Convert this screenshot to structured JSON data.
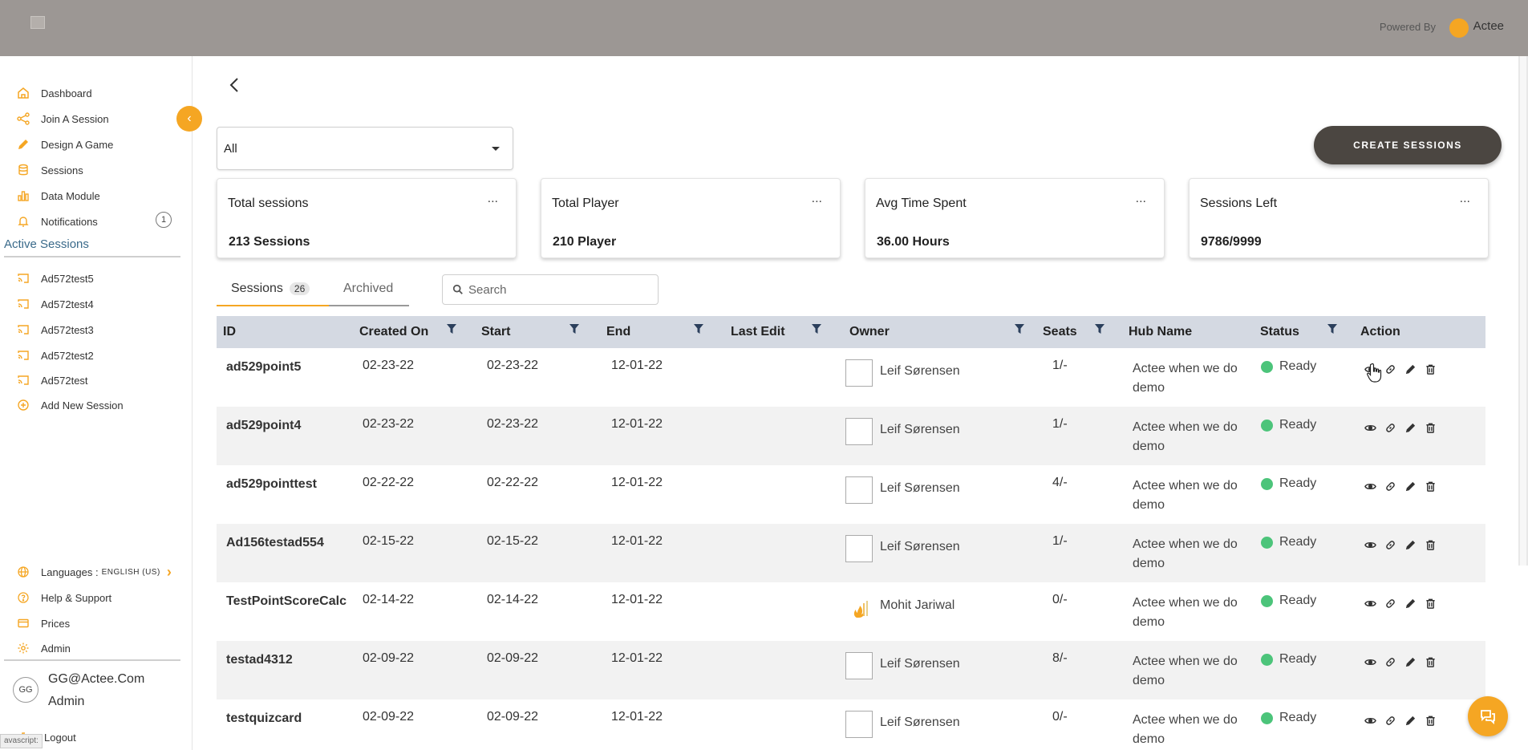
{
  "header": {
    "powered_by": "Powered By",
    "brand": "Actee"
  },
  "sidebar": {
    "nav": [
      {
        "label": "Dashboard",
        "icon": "home-icon"
      },
      {
        "label": "Join A Session",
        "icon": "share-icon"
      },
      {
        "label": "Design A Game",
        "icon": "pencil-icon"
      },
      {
        "label": "Sessions",
        "icon": "database-icon"
      },
      {
        "label": "Data Module",
        "icon": "bar-chart-icon"
      },
      {
        "label": "Notifications",
        "icon": "bell-icon",
        "badge": "1"
      }
    ],
    "active_sessions_title": "Active Sessions",
    "active_sessions": [
      {
        "label": "Ad572test5"
      },
      {
        "label": "Ad572test4"
      },
      {
        "label": "Ad572test3"
      },
      {
        "label": "Ad572test2"
      },
      {
        "label": "Ad572test"
      }
    ],
    "add_new_session": "Add New Session",
    "languages_label": "Languages :",
    "language_value": "ENGLISH (US)",
    "help": "Help & Support",
    "prices": "Prices",
    "admin": "Admin",
    "user": {
      "initials": "GG",
      "email": "GG@Actee.Com",
      "role": "Admin"
    },
    "logout": "Logout",
    "status_url": "avascript:"
  },
  "filter": {
    "selected": "All"
  },
  "create_button": "CREATE SESSIONS",
  "stats": [
    {
      "label": "Total sessions",
      "value": "213 Sessions"
    },
    {
      "label": "Total Player",
      "value": "210 Player"
    },
    {
      "label": "Avg Time Spent",
      "value": "36.00 Hours"
    },
    {
      "label": "Sessions Left",
      "value": "9786/9999"
    }
  ],
  "stat_more": "...",
  "tabs": {
    "sessions": "Sessions",
    "sessions_count": "26",
    "archived": "Archived"
  },
  "search": {
    "placeholder": "Search"
  },
  "table": {
    "columns": [
      "ID",
      "Created On",
      "Start",
      "End",
      "Last Edit",
      "Owner",
      "Seats",
      "Hub Name",
      "Status",
      "Action"
    ],
    "rows": [
      {
        "id": "ad529point5",
        "created": "02-23-22",
        "start": "02-23-22",
        "end": "12-01-22",
        "owner": "Leif Sørensen",
        "seats": "1/-",
        "hub": "Actee when we do demo",
        "status": "Ready"
      },
      {
        "id": "ad529point4",
        "created": "02-23-22",
        "start": "02-23-22",
        "end": "12-01-22",
        "owner": "Leif Sørensen",
        "seats": "1/-",
        "hub": "Actee when we do demo",
        "status": "Ready"
      },
      {
        "id": "ad529pointtest",
        "created": "02-22-22",
        "start": "02-22-22",
        "end": "12-01-22",
        "owner": "Leif Sørensen",
        "seats": "4/-",
        "hub": "Actee when we do demo",
        "status": "Ready"
      },
      {
        "id": "Ad156testad554",
        "created": "02-15-22",
        "start": "02-15-22",
        "end": "12-01-22",
        "owner": "Leif Sørensen",
        "seats": "1/-",
        "hub": "Actee when we do demo",
        "status": "Ready"
      },
      {
        "id": "TestPointScoreCalc",
        "created": "02-14-22",
        "start": "02-14-22",
        "end": "12-01-22",
        "owner": "Mohit Jariwal",
        "seats": "0/-",
        "hub": "Actee when we do demo",
        "status": "Ready"
      },
      {
        "id": "testad4312",
        "created": "02-09-22",
        "start": "02-09-22",
        "end": "12-01-22",
        "owner": "Leif Sørensen",
        "seats": "8/-",
        "hub": "Actee when we do demo",
        "status": "Ready"
      },
      {
        "id": "testquizcard",
        "created": "02-09-22",
        "start": "02-09-22",
        "end": "12-01-22",
        "owner": "Leif Sørensen",
        "seats": "0/-",
        "hub": "Actee when we do demo",
        "status": "Ready"
      }
    ]
  },
  "colors": {
    "accent": "#f5a623",
    "header": "#9c9794",
    "button": "#4b4641",
    "ready": "#4cc47a",
    "table_head": "#d4d9e2"
  }
}
